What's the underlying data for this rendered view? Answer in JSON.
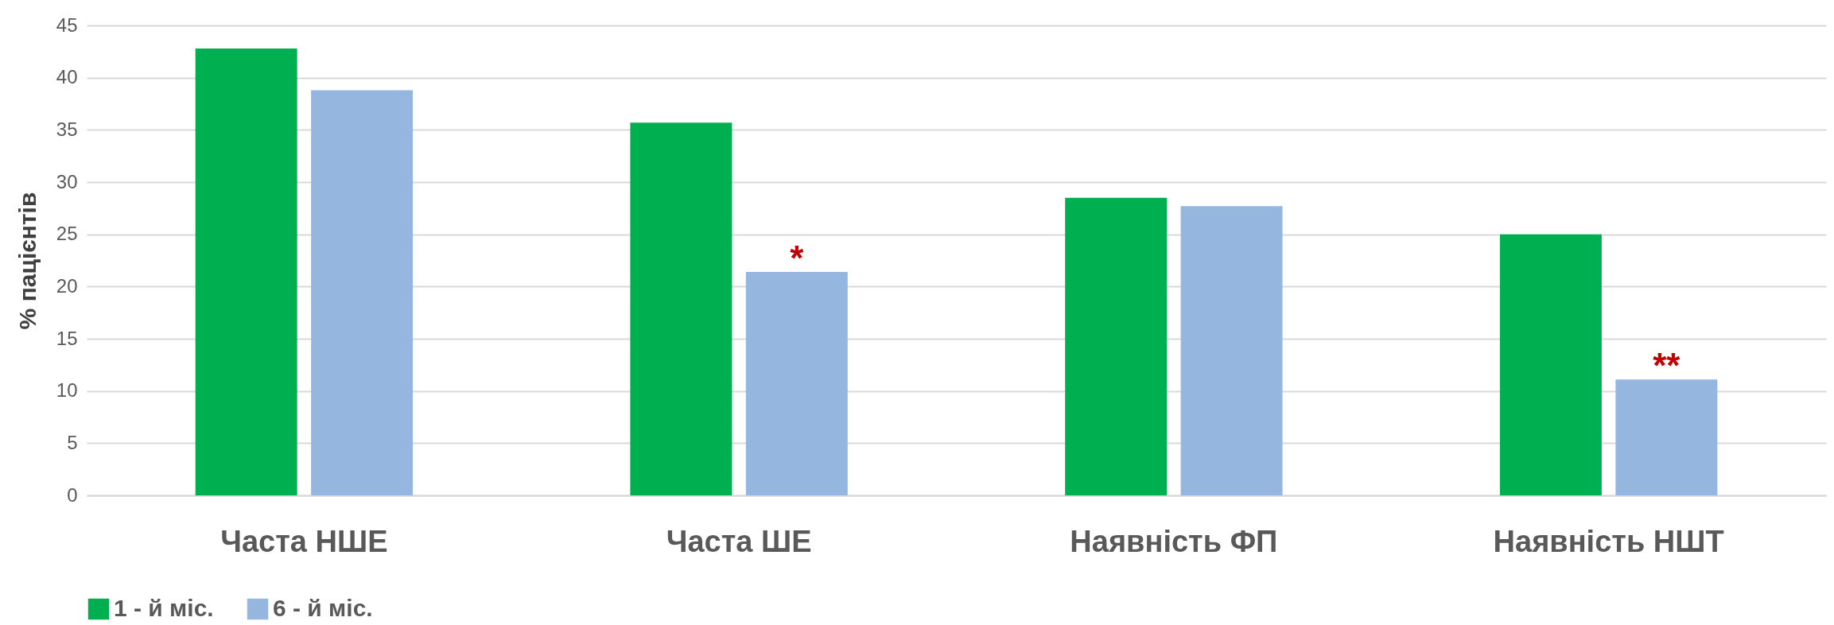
{
  "chart_data": {
    "type": "bar",
    "ylabel": "% пацієнтів",
    "categories": [
      "Часта НШЕ",
      "Часта ШЕ",
      "Наявність ФП",
      "Наявність НШТ"
    ],
    "series": [
      {
        "name": "1 - й міс.",
        "color": "#00b050",
        "values": [
          42.8,
          35.7,
          28.5,
          25.0
        ]
      },
      {
        "name": "6 - й міс.",
        "color": "#95b7df",
        "values": [
          38.8,
          21.4,
          27.7,
          11.1
        ]
      }
    ],
    "ylim": [
      0,
      45
    ],
    "yticks": [
      0,
      5,
      10,
      15,
      20,
      25,
      30,
      35,
      40,
      45
    ],
    "grid": "y",
    "legend": "bottom",
    "annotations": [
      "*",
      "**"
    ]
  }
}
